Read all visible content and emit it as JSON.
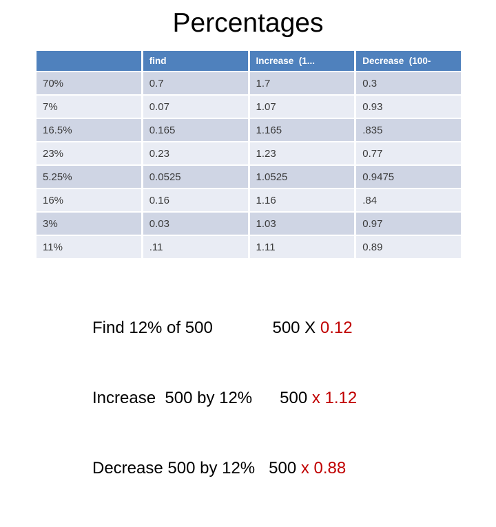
{
  "slide": {
    "title": "Percentages"
  },
  "table": {
    "headers": [
      "",
      "find",
      "Increase  (1...",
      "Decrease  (100-"
    ],
    "rows": [
      [
        "70%",
        "0.7",
        "1.7",
        "0.3"
      ],
      [
        "7%",
        "0.07",
        "1.07",
        "0.93"
      ],
      [
        "16.5%",
        "0.165",
        "1.165",
        ".835"
      ],
      [
        "23%",
        "0.23",
        "1.23",
        "0.77"
      ],
      [
        "5.25%",
        "0.0525",
        "1.0525",
        "0.9475"
      ],
      [
        "16%",
        "0.16",
        "1.16",
        ".84"
      ],
      [
        "3%",
        "0.03",
        "1.03",
        "0.97"
      ],
      [
        "11%",
        ".11",
        "1.11",
        "0.89"
      ]
    ]
  },
  "examples": [
    {
      "black": "Find 12% of 500             500 X ",
      "red": "0.12"
    },
    {
      "black": "Increase  500 by 12%      500 ",
      "red": "x 1.12"
    },
    {
      "black": "Decrease 500 by 12%   500 ",
      "red": "x 0.88"
    }
  ],
  "colors": {
    "header_bg": "#4F81BD",
    "band_dark": "#CFD5E4",
    "band_light": "#E9ECF4",
    "header_text": "#FFFFFF",
    "body_text": "#3B3B3B",
    "accent_red": "#C00000"
  }
}
